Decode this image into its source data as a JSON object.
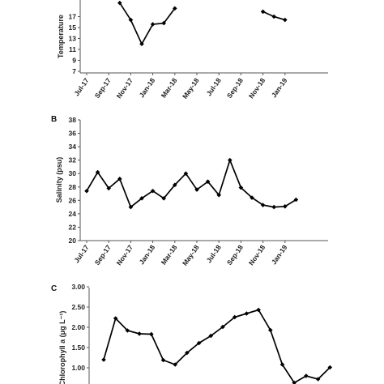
{
  "chart_data": [
    {
      "panel": "",
      "type": "line",
      "ylabel": "Temperature",
      "yticks": [
        "7",
        "9",
        "11",
        "13",
        "15",
        "17"
      ],
      "ylim": [
        7,
        19
      ],
      "x_labels": [
        "Jul-17",
        "Sep-17",
        "Nov-17",
        "Jan-18",
        "Mar-18",
        "May-18",
        "Jul-18",
        "Sep-18",
        "Nov-18",
        "Jan-19"
      ],
      "x": [
        0,
        1,
        2,
        3,
        4,
        5,
        6,
        7,
        8,
        9,
        10,
        11,
        12,
        13,
        14,
        15,
        16,
        17,
        18,
        19
      ],
      "values": [
        null,
        null,
        null,
        19.5,
        16.4,
        12.0,
        15.6,
        15.8,
        18.5,
        null,
        null,
        null,
        null,
        null,
        null,
        null,
        17.9,
        17.0,
        16.4,
        null
      ],
      "color": "#000000"
    },
    {
      "panel": "B",
      "type": "line",
      "ylabel": "Salinity (psu)",
      "yticks": [
        "20",
        "22",
        "24",
        "26",
        "28",
        "30",
        "32",
        "34",
        "36",
        "38"
      ],
      "ylim": [
        20,
        38
      ],
      "x_labels": [
        "Jul-17",
        "Sep-17",
        "Nov-17",
        "Jan-18",
        "Mar-18",
        "May-18",
        "Jul-18",
        "Sep-18",
        "Nov-18",
        "Jan-19"
      ],
      "x": [
        0,
        1,
        2,
        3,
        4,
        5,
        6,
        7,
        8,
        9,
        10,
        11,
        12,
        13,
        14,
        15,
        16,
        17,
        18,
        19
      ],
      "values": [
        27.4,
        30.2,
        27.8,
        29.2,
        25.0,
        26.3,
        27.4,
        26.3,
        28.3,
        30.0,
        27.6,
        28.8,
        26.8,
        32.0,
        27.9,
        26.4,
        25.3,
        25.0,
        25.1,
        26.1
      ],
      "color": "#000000"
    },
    {
      "panel": "C",
      "type": "line",
      "ylabel": "Chlorophyll a (μg L⁻¹)",
      "yticks": [
        "1.00",
        "1.50",
        "2.00",
        "2.50",
        "3.00"
      ],
      "ylim": [
        0.5,
        3.0
      ],
      "x_labels": [],
      "x": [
        0,
        1,
        2,
        3,
        4,
        5,
        6,
        7,
        8,
        9,
        10,
        11,
        12,
        13,
        14,
        15,
        16,
        17,
        18,
        19
      ],
      "values": [
        1.2,
        2.22,
        1.92,
        1.84,
        1.83,
        1.19,
        1.08,
        1.37,
        1.61,
        1.79,
        2.01,
        2.25,
        2.34,
        2.43,
        1.93,
        1.08,
        0.63,
        0.8,
        0.72,
        1.01
      ],
      "color": "#000000"
    }
  ]
}
